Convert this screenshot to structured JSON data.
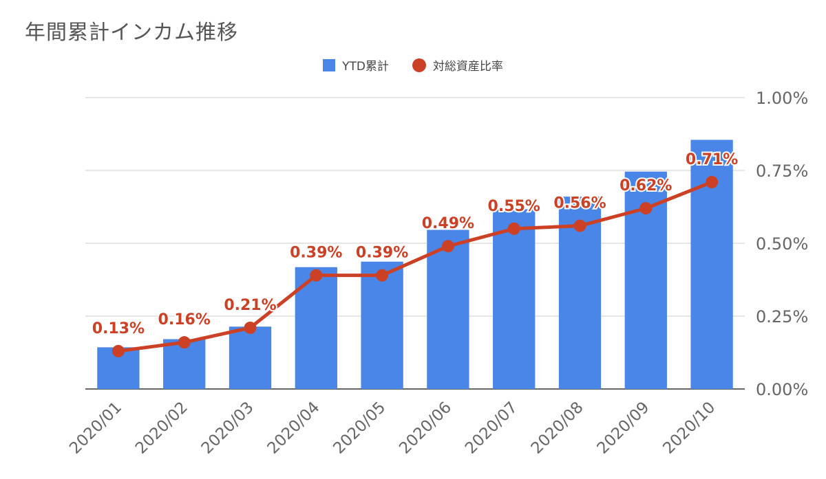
{
  "title": "年間累計インカム推移",
  "legend": {
    "bar_label": "YTD累計",
    "line_label": "対総資産比率"
  },
  "colors": {
    "bar": "#4a86e8",
    "line": "#cc4125",
    "grid": "#cccccc",
    "axis_text": "#666666",
    "label_text": "#cc4125"
  },
  "chart_data": {
    "type": "bar",
    "title": "年間累計インカム推移",
    "categories": [
      "2020/01",
      "2020/02",
      "2020/03",
      "2020/04",
      "2020/05",
      "2020/06",
      "2020/07",
      "2020/08",
      "2020/09",
      "2020/10"
    ],
    "series": [
      {
        "name": "YTD累計",
        "type": "bar",
        "axis": "left-unlabeled",
        "values": [
          0.143,
          0.171,
          0.214,
          0.418,
          0.437,
          0.546,
          0.617,
          0.66,
          0.746,
          0.855
        ]
      },
      {
        "name": "対総資産比率",
        "type": "line",
        "axis": "right",
        "values": [
          0.13,
          0.16,
          0.21,
          0.39,
          0.39,
          0.49,
          0.55,
          0.56,
          0.62,
          0.71
        ],
        "data_labels": [
          "0.13%",
          "0.16%",
          "0.21%",
          "0.39%",
          "0.39%",
          "0.49%",
          "0.55%",
          "0.56%",
          "0.62%",
          "0.71%"
        ]
      }
    ],
    "y_right": {
      "ticks": [
        "0.00%",
        "0.25%",
        "0.50%",
        "0.75%",
        "1.00%"
      ],
      "ylim": [
        0,
        1.0
      ]
    },
    "grid": true,
    "legend_position": "top-center"
  }
}
